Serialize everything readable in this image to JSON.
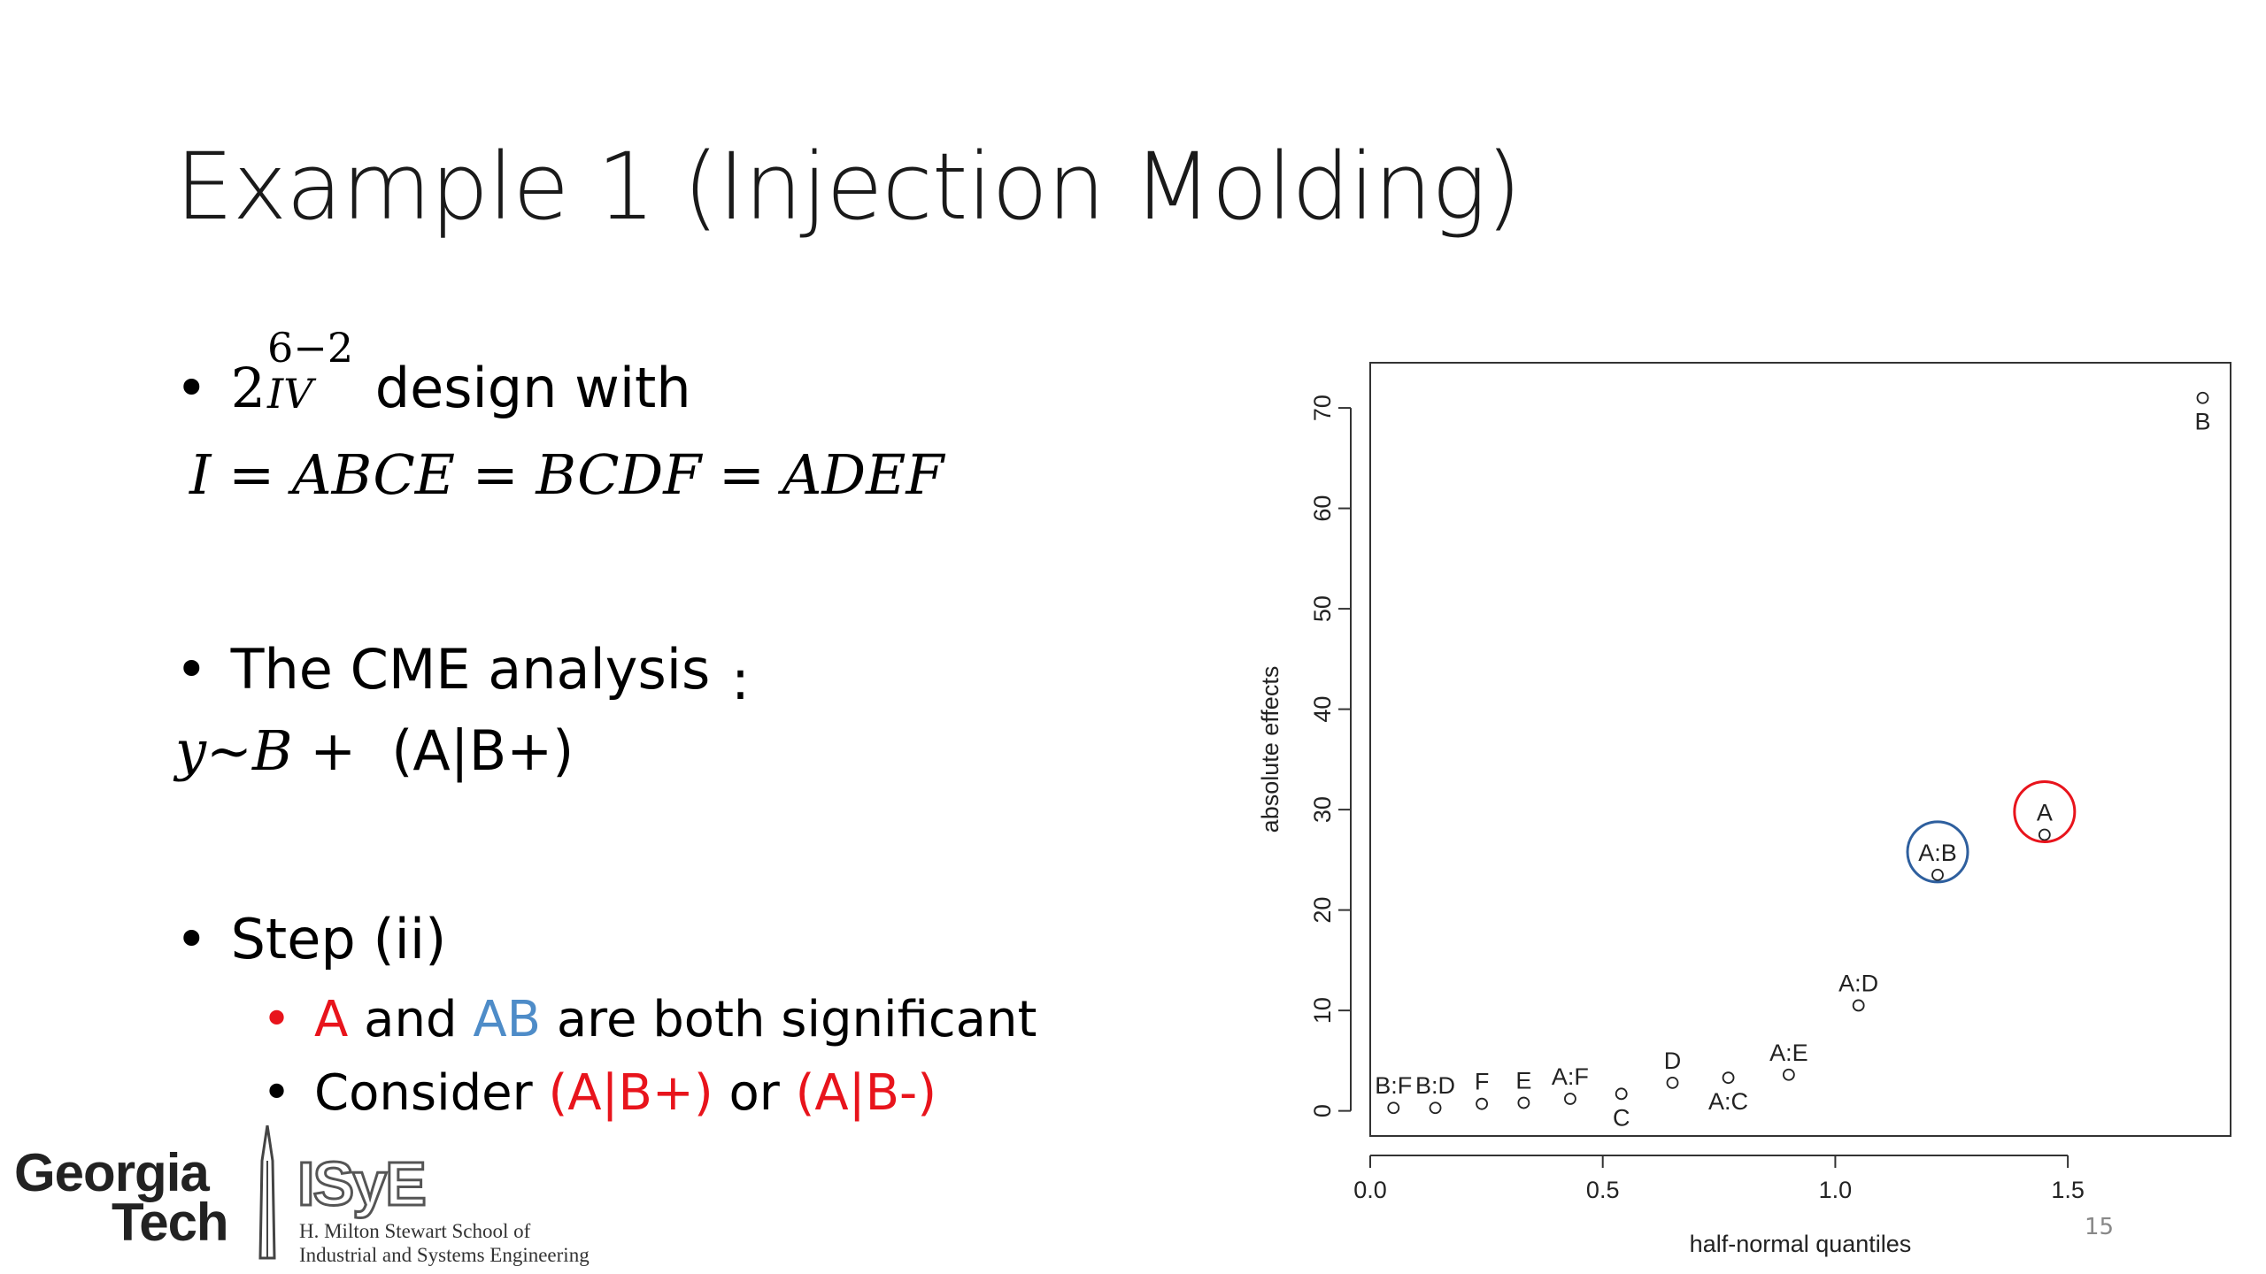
{
  "slide": {
    "title": "Example 1 (Injection Molding)",
    "page_number": "15"
  },
  "bullets": {
    "b1": {
      "base": "2",
      "superscript": "6−2",
      "subscript": "IV",
      "text": " design with",
      "equation": "I = ABCE = BCDF = ADEF"
    },
    "b2": {
      "text": "The CME analysis",
      "colon": ":",
      "formula_math": "y~B +",
      "formula_tail": "(A|B+)"
    },
    "b3": {
      "text": "Step (ii)",
      "sub1": {
        "a": "A",
        "and": " and ",
        "ab": "AB",
        "rest": " are both significant"
      },
      "sub2": {
        "lead": "Consider ",
        "opt1": "(A|B+)",
        "or": " or ",
        "opt2": "(A|B-)"
      }
    }
  },
  "logo": {
    "georgia": "Georgia",
    "tech": "Tech",
    "isye": "ISyE",
    "school_line1": "H. Milton Stewart School of",
    "school_line2": "Industrial and Systems Engineering"
  },
  "chart_data": {
    "type": "scatter",
    "xlabel": "half-normal quantiles",
    "ylabel": "absolute effects",
    "xlim": [
      0.0,
      1.85
    ],
    "ylim": [
      -2.5,
      74.5
    ],
    "xticks": [
      0.0,
      0.5,
      1.0,
      1.5
    ],
    "xtick_labels": [
      "0.0",
      "0.5",
      "1.0",
      "1.5"
    ],
    "yticks": [
      0,
      10,
      20,
      30,
      40,
      50,
      60,
      70
    ],
    "ytick_labels": [
      "0",
      "10",
      "20",
      "30",
      "40",
      "50",
      "60",
      "70"
    ],
    "grid": false,
    "points": [
      {
        "label": "B:F",
        "x": 0.05,
        "y": 0.3,
        "label_pos": "above"
      },
      {
        "label": "B:D",
        "x": 0.14,
        "y": 0.3,
        "label_pos": "above"
      },
      {
        "label": "F",
        "x": 0.24,
        "y": 0.7,
        "label_pos": "above"
      },
      {
        "label": "E",
        "x": 0.33,
        "y": 0.8,
        "label_pos": "above"
      },
      {
        "label": "A:F",
        "x": 0.43,
        "y": 1.2,
        "label_pos": "above"
      },
      {
        "label": "C",
        "x": 0.54,
        "y": 1.7,
        "label_pos": "below"
      },
      {
        "label": "D",
        "x": 0.65,
        "y": 2.8,
        "label_pos": "above"
      },
      {
        "label": "A:C",
        "x": 0.77,
        "y": 3.3,
        "label_pos": "below"
      },
      {
        "label": "A:E",
        "x": 0.9,
        "y": 3.6,
        "label_pos": "above"
      },
      {
        "label": "A:D",
        "x": 1.05,
        "y": 10.5,
        "label_pos": "above"
      },
      {
        "label": "A:B",
        "x": 1.22,
        "y": 23.5,
        "label_pos": "above"
      },
      {
        "label": "A",
        "x": 1.45,
        "y": 27.5,
        "label_pos": "above"
      },
      {
        "label": "B",
        "x": 1.79,
        "y": 71.0,
        "label_pos": "below"
      }
    ],
    "highlights": [
      {
        "label": "A:B",
        "color": "#2e5f9e"
      },
      {
        "label": "A",
        "color": "#e8141c"
      }
    ]
  }
}
